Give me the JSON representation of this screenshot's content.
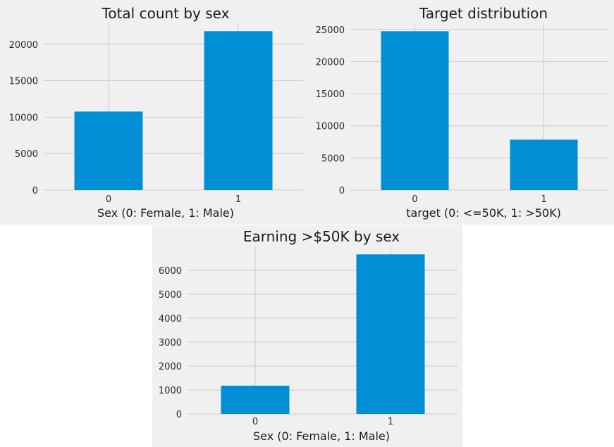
{
  "chart_data": [
    {
      "type": "bar",
      "title": "Total count by sex",
      "xlabel": "Sex (0: Female, 1: Male)",
      "ylabel": "",
      "categories": [
        "0",
        "1"
      ],
      "values": [
        10771,
        21790
      ],
      "ylim": [
        0,
        22880
      ],
      "yticks": [
        0,
        5000,
        10000,
        15000,
        20000
      ],
      "grid": true,
      "color": "#008fd5"
    },
    {
      "type": "bar",
      "title": "Target distribution",
      "xlabel": "target (0: <=50K, 1: >50K)",
      "ylabel": "",
      "categories": [
        "0",
        "1"
      ],
      "values": [
        24720,
        7841
      ],
      "ylim": [
        0,
        25960
      ],
      "yticks": [
        0,
        5000,
        10000,
        15000,
        20000,
        25000
      ],
      "grid": true,
      "color": "#008fd5"
    },
    {
      "type": "bar",
      "title": "Earning >$50K by sex",
      "xlabel": "Sex (0: Female, 1: Male)",
      "ylabel": "",
      "categories": [
        "0",
        "1"
      ],
      "values": [
        1179,
        6662
      ],
      "ylim": [
        0,
        6995
      ],
      "yticks": [
        0,
        1000,
        2000,
        3000,
        4000,
        5000,
        6000
      ],
      "grid": true,
      "color": "#008fd5"
    }
  ]
}
